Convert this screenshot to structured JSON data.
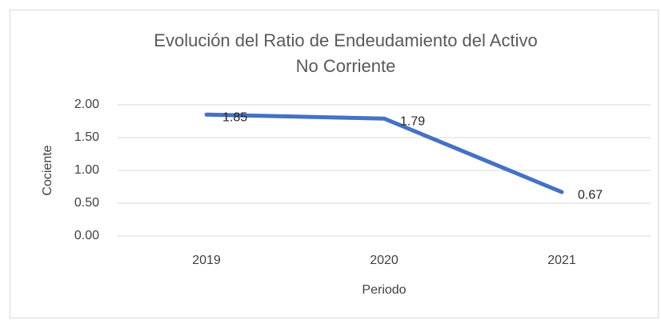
{
  "chart_data": {
    "type": "line",
    "title": [
      "Evolución del Ratio de Endeudamiento del Activo",
      "No Corriente"
    ],
    "categories": [
      "2019",
      "2020",
      "2021"
    ],
    "series": [
      {
        "name": "Cociente",
        "color": "#4472c4",
        "values": [
          1.85,
          1.79,
          0.67
        ]
      }
    ],
    "ylim": [
      0,
      2
    ],
    "yticks": [
      {
        "value": 0,
        "label": "0.00"
      },
      {
        "value": 0.5,
        "label": "0.50"
      },
      {
        "value": 1,
        "label": "1.00"
      },
      {
        "value": 1.5,
        "label": "1.50"
      },
      {
        "value": 2,
        "label": "2.00"
      }
    ],
    "ylabel": "Cociente",
    "xlabel": "Periodo",
    "grid": true
  }
}
